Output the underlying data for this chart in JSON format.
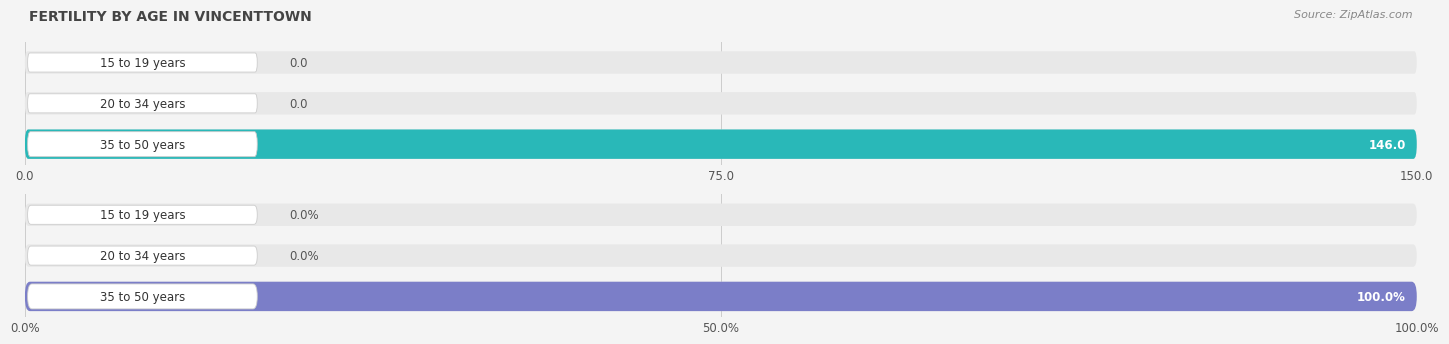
{
  "title": "FERTILITY BY AGE IN VINCENTTOWN",
  "source": "Source: ZipAtlas.com",
  "chart1": {
    "categories": [
      "15 to 19 years",
      "20 to 34 years",
      "35 to 50 years"
    ],
    "values": [
      0.0,
      0.0,
      146.0
    ],
    "xlim": [
      0,
      150
    ],
    "xticks": [
      0.0,
      75.0,
      150.0
    ],
    "bar_color_full": "#29b8b8",
    "bar_color_small": "#7dd4d0",
    "bar_bg_color": "#e8e8e8"
  },
  "chart2": {
    "categories": [
      "15 to 19 years",
      "20 to 34 years",
      "35 to 50 years"
    ],
    "values": [
      0.0,
      0.0,
      100.0
    ],
    "xlim": [
      0,
      100
    ],
    "xticks": [
      0.0,
      50.0,
      100.0
    ],
    "bar_color_full": "#7b7ec8",
    "bar_color_small": "#a0a3d8",
    "bar_bg_color": "#e8e8e8"
  },
  "bg_color": "#f4f4f4",
  "title_fontsize": 10,
  "source_fontsize": 8,
  "tick_fontsize": 8.5,
  "label_fontsize": 8.5,
  "value_fontsize": 8.5
}
